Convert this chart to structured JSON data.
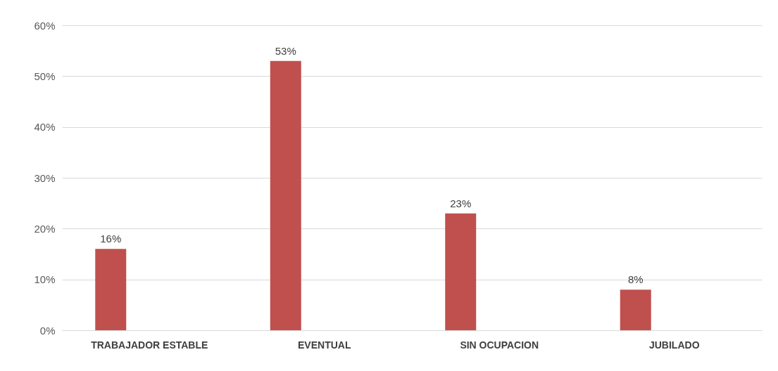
{
  "chart_data": {
    "type": "bar",
    "categories": [
      "TRABAJADOR ESTABLE",
      "EVENTUAL",
      "SIN OCUPACION",
      "JUBILADO"
    ],
    "values": [
      16,
      53,
      23,
      8
    ],
    "value_labels": [
      "16%",
      "53%",
      "23%",
      "8%"
    ],
    "color": "#c0504d",
    "ylim": [
      0,
      60
    ],
    "yticks": [
      {
        "value": 0,
        "label": "0%"
      },
      {
        "value": 10,
        "label": "10%"
      },
      {
        "value": 20,
        "label": "20%"
      },
      {
        "value": 30,
        "label": "30%"
      },
      {
        "value": 40,
        "label": "40%"
      },
      {
        "value": 50,
        "label": "50%"
      },
      {
        "value": 60,
        "label": "60%"
      }
    ],
    "grid": "y"
  }
}
